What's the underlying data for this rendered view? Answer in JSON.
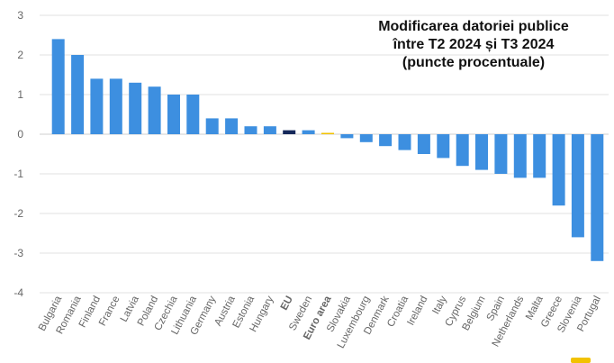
{
  "chart_data": {
    "type": "bar",
    "title_lines": [
      "Modificarea datoriei publice",
      "între T2 2024 și T3 2024",
      "(puncte procentuale)"
    ],
    "xlabel": "",
    "ylabel": "",
    "ylim": [
      -4,
      3
    ],
    "yticks": [
      "3",
      "2",
      "1",
      "0",
      "-1",
      "-2",
      "-3",
      "-4"
    ],
    "grid": true,
    "categories": [
      "Bulgaria",
      "Romania",
      "Finland",
      "France",
      "Latvia",
      "Poland",
      "Czechia",
      "Lithuania",
      "Germany",
      "Austria",
      "Estonia",
      "Hungary",
      "EU",
      "Sweden",
      "Euro area",
      "Slovakia",
      "Luxembourg",
      "Denmark",
      "Croatia",
      "Ireland",
      "Italy",
      "Cyprus",
      "Belgium",
      "Spain",
      "Netherlands",
      "Malta",
      "Greece",
      "Slovenia",
      "Portugal"
    ],
    "values": [
      2.4,
      2.0,
      1.4,
      1.4,
      1.3,
      1.2,
      1.0,
      1.0,
      0.4,
      0.4,
      0.2,
      0.2,
      0.1,
      0.1,
      0.0,
      -0.1,
      -0.2,
      -0.3,
      -0.4,
      -0.5,
      -0.6,
      -0.8,
      -0.9,
      -1.0,
      -1.1,
      -1.1,
      -1.8,
      -2.6,
      -3.2
    ],
    "bold_categories": [
      "EU",
      "Euro area"
    ],
    "colors": {
      "default": "#3d8fe0",
      "EU": "#14285a",
      "Euro area": "#f2c200",
      "grid": "#e2e2e2",
      "axis_text": "#666666"
    }
  }
}
